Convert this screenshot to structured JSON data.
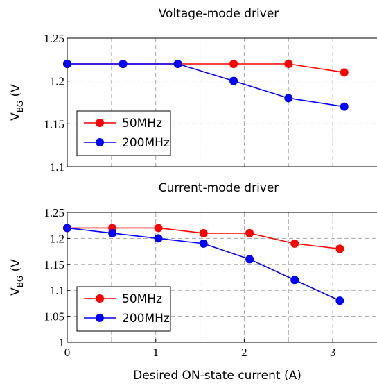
{
  "chart_data": [
    {
      "type": "line",
      "title": "Voltage-mode driver",
      "xlabel": "",
      "ylabel_main": "V",
      "ylabel_sub": "BG",
      "ylabel_tail": " (V",
      "xlim": [
        0,
        3.5
      ],
      "ylim": [
        1.1,
        1.25
      ],
      "xticks": [],
      "yticks": [
        1.1,
        1.15,
        1.2,
        1.25
      ],
      "ytick_labels": [
        "1.1",
        "1.15",
        "1.2",
        "1.25"
      ],
      "grid": true,
      "legend_position": "bottom-left",
      "series": [
        {
          "name": "50MHz",
          "color": "#ff0000",
          "x": [
            0,
            0.63,
            1.25,
            1.88,
            2.5,
            3.13
          ],
          "y": [
            1.22,
            1.22,
            1.22,
            1.22,
            1.22,
            1.21
          ]
        },
        {
          "name": "200MHz",
          "color": "#0000ff",
          "x": [
            0,
            0.63,
            1.25,
            1.88,
            2.5,
            3.13
          ],
          "y": [
            1.22,
            1.22,
            1.22,
            1.2,
            1.18,
            1.17
          ]
        }
      ]
    },
    {
      "type": "line",
      "title": "Current-mode driver",
      "xlabel": "Desired ON-state current (A)",
      "ylabel_main": "V",
      "ylabel_sub": "BG",
      "ylabel_tail": " (V",
      "xlim": [
        0,
        3.5
      ],
      "ylim": [
        1,
        1.25
      ],
      "xticks": [
        0,
        1,
        2,
        3
      ],
      "xtick_labels": [
        "0",
        "1",
        "2",
        "3"
      ],
      "yticks": [
        1,
        1.05,
        1.1,
        1.15,
        1.2,
        1.25
      ],
      "ytick_labels": [
        "1",
        "1.05",
        "1.1",
        "1.15",
        "1.2",
        "1.25"
      ],
      "grid": true,
      "legend_position": "bottom-left",
      "series": [
        {
          "name": "50MHz",
          "color": "#ff0000",
          "x": [
            0,
            0.51,
            1.03,
            1.54,
            2.06,
            2.57,
            3.08
          ],
          "y": [
            1.22,
            1.22,
            1.22,
            1.21,
            1.21,
            1.19,
            1.18
          ]
        },
        {
          "name": "200MHz",
          "color": "#0000ff",
          "x": [
            0,
            0.51,
            1.03,
            1.54,
            2.06,
            2.57,
            3.08
          ],
          "y": [
            1.22,
            1.21,
            1.2,
            1.19,
            1.16,
            1.12,
            1.08
          ]
        }
      ]
    }
  ]
}
